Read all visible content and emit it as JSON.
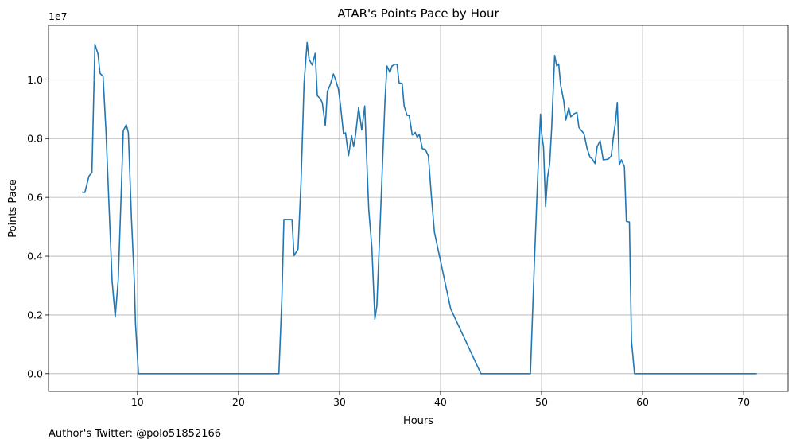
{
  "chart_data": {
    "type": "line",
    "title": "ATAR's Points Pace by Hour",
    "xlabel": "Hours",
    "ylabel": "Points Pace",
    "y_offset_label": "1e7",
    "y_multiplier": 10000000,
    "xlim": [
      1.2,
      74.4
    ],
    "ylim": [
      -0.06,
      1.185
    ],
    "x_ticks": [
      10,
      20,
      30,
      40,
      50,
      60,
      70
    ],
    "y_ticks": [
      0.0,
      0.2,
      0.4,
      0.6,
      0.8,
      1.0
    ],
    "y_tick_labels": [
      "0.0",
      "0.2",
      "0.4",
      "0.6",
      "0.8",
      "1.0"
    ],
    "grid": true,
    "line_color": "#1f77b4",
    "series": [
      {
        "x": [
          4.5,
          4.8,
          5.2,
          5.5,
          5.8,
          6.1,
          6.3,
          6.6,
          6.9,
          7.2,
          7.5,
          7.8,
          8.1,
          8.4,
          8.6,
          8.9,
          9.1,
          9.4,
          9.7,
          9.8,
          10.1,
          12,
          15,
          18,
          21,
          24.0,
          24.3,
          24.5,
          24.9,
          25.3,
          25.5,
          25.9,
          26.2,
          26.5,
          26.8,
          27.0,
          27.3,
          27.6,
          27.8,
          28.1,
          28.3,
          28.6,
          28.8,
          29.1,
          29.4,
          29.6,
          29.9,
          30.1,
          30.4,
          30.6,
          30.9,
          31.2,
          31.4,
          31.6,
          31.9,
          32.2,
          32.5,
          32.7,
          32.9,
          33.2,
          33.5,
          33.7,
          34.0,
          34.2,
          34.5,
          34.7,
          35.0,
          35.2,
          35.5,
          35.7,
          35.9,
          36.2,
          36.4,
          36.7,
          36.9,
          37.2,
          37.5,
          37.7,
          37.9,
          38.2,
          38.5,
          38.8,
          39.1,
          39.4,
          41,
          44,
          46,
          48.2,
          48.5,
          48.9,
          49.3,
          49.6,
          49.9,
          50.0,
          50.2,
          50.4,
          50.6,
          50.8,
          51.0,
          51.3,
          51.5,
          51.7,
          51.9,
          52.2,
          52.4,
          52.7,
          52.9,
          53.2,
          53.5,
          53.7,
          53.9,
          54.2,
          54.5,
          54.8,
          55.0,
          55.3,
          55.5,
          55.8,
          56.1,
          56.4,
          56.6,
          56.9,
          57.1,
          57.3,
          57.5,
          57.7,
          57.9,
          58.2,
          58.4,
          58.7,
          58.9,
          59.2,
          62,
          66,
          70,
          71.3
        ],
        "values": [
          0.618,
          0.617,
          0.672,
          0.685,
          1.121,
          1.087,
          1.022,
          1.012,
          0.819,
          0.565,
          0.315,
          0.193,
          0.32,
          0.621,
          0.826,
          0.847,
          0.82,
          0.535,
          0.308,
          0.175,
          0.0,
          0.0,
          0.0,
          0.0,
          0.0,
          0.0,
          0.259,
          0.525,
          0.525,
          0.525,
          0.402,
          0.424,
          0.655,
          0.989,
          1.127,
          1.069,
          1.05,
          1.09,
          0.946,
          0.936,
          0.922,
          0.845,
          0.96,
          0.985,
          1.02,
          1.002,
          0.968,
          0.913,
          0.816,
          0.82,
          0.742,
          0.81,
          0.773,
          0.814,
          0.906,
          0.829,
          0.911,
          0.728,
          0.559,
          0.43,
          0.186,
          0.231,
          0.486,
          0.663,
          0.927,
          1.047,
          1.025,
          1.047,
          1.053,
          1.053,
          0.989,
          0.988,
          0.911,
          0.879,
          0.879,
          0.812,
          0.821,
          0.804,
          0.815,
          0.766,
          0.763,
          0.741,
          0.604,
          0.481,
          0.221,
          0.0,
          0.0,
          0.0,
          0.0,
          0.0,
          0.385,
          0.649,
          0.883,
          0.821,
          0.77,
          0.569,
          0.669,
          0.713,
          0.834,
          1.083,
          1.047,
          1.054,
          0.981,
          0.928,
          0.863,
          0.905,
          0.874,
          0.884,
          0.889,
          0.838,
          0.829,
          0.817,
          0.767,
          0.736,
          0.732,
          0.715,
          0.772,
          0.793,
          0.728,
          0.729,
          0.73,
          0.741,
          0.802,
          0.849,
          0.923,
          0.71,
          0.728,
          0.704,
          0.518,
          0.516,
          0.112,
          0.0,
          0.0,
          0.0,
          0.0,
          0.0
        ]
      }
    ]
  },
  "footer": {
    "text": "Author's Twitter: @polo51852166"
  }
}
